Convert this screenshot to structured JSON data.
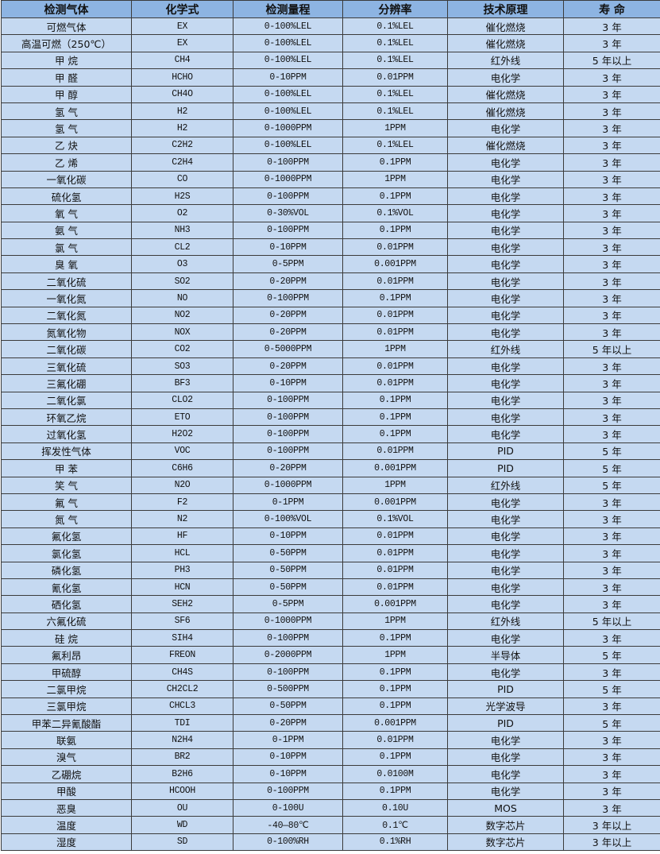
{
  "table": {
    "headers": [
      "检测气体",
      "化学式",
      "检测量程",
      "分辨率",
      "技术原理",
      "寿 命"
    ],
    "rows": [
      [
        "可燃气体",
        "EX",
        "0-100%LEL",
        "0.1%LEL",
        "催化燃烧",
        "3 年"
      ],
      [
        "高温可燃（250℃）",
        "EX",
        "0-100%LEL",
        "0.1%LEL",
        "催化燃烧",
        "3 年"
      ],
      [
        "甲 烷",
        "CH4",
        "0-100%LEL",
        "0.1%LEL",
        "红外线",
        "5 年以上"
      ],
      [
        "甲 醛",
        "HCHO",
        "0-10PPM",
        "0.01PPM",
        "电化学",
        "3 年"
      ],
      [
        "甲 醇",
        "CH4O",
        "0-100%LEL",
        "0.1%LEL",
        "催化燃烧",
        "3 年"
      ],
      [
        "氢 气",
        "H2",
        "0-100%LEL",
        "0.1%LEL",
        "催化燃烧",
        "3 年"
      ],
      [
        "氢 气",
        "H2",
        "0-1000PPM",
        "1PPM",
        "电化学",
        "3 年"
      ],
      [
        "乙 炔",
        "C2H2",
        "0-100%LEL",
        "0.1%LEL",
        "催化燃烧",
        "3 年"
      ],
      [
        "乙 烯",
        "C2H4",
        "0-100PPM",
        "0.1PPM",
        "电化学",
        "3 年"
      ],
      [
        "一氧化碳",
        "CO",
        "0-1000PPM",
        "1PPM",
        "电化学",
        "3 年"
      ],
      [
        "硫化氢",
        "H2S",
        "0-100PPM",
        "0.1PPM",
        "电化学",
        "3 年"
      ],
      [
        "氧 气",
        "O2",
        "0-30%VOL",
        "0.1%VOL",
        "电化学",
        "3 年"
      ],
      [
        "氨 气",
        "NH3",
        "0-100PPM",
        "0.1PPM",
        "电化学",
        "3 年"
      ],
      [
        "氯 气",
        "CL2",
        "0-10PPM",
        "0.01PPM",
        "电化学",
        "3 年"
      ],
      [
        "臭 氧",
        "O3",
        "0-5PPM",
        "0.001PPM",
        "电化学",
        "3 年"
      ],
      [
        "二氧化硫",
        "SO2",
        "0-20PPM",
        "0.01PPM",
        "电化学",
        "3 年"
      ],
      [
        "一氧化氮",
        "NO",
        "0-100PPM",
        "0.1PPM",
        "电化学",
        "3 年"
      ],
      [
        "二氧化氮",
        "NO2",
        "0-20PPM",
        "0.01PPM",
        "电化学",
        "3 年"
      ],
      [
        "氮氧化物",
        "NOX",
        "0-20PPM",
        "0.01PPM",
        "电化学",
        "3 年"
      ],
      [
        "二氧化碳",
        "CO2",
        "0-5000PPM",
        "1PPM",
        "红外线",
        "5 年以上"
      ],
      [
        "三氧化硫",
        "SO3",
        "0-20PPM",
        "0.01PPM",
        "电化学",
        "3 年"
      ],
      [
        "三氟化硼",
        "BF3",
        "0-10PPM",
        "0.01PPM",
        "电化学",
        "3 年"
      ],
      [
        "二氧化氯",
        "CLO2",
        "0-100PPM",
        "0.1PPM",
        "电化学",
        "3 年"
      ],
      [
        "环氧乙烷",
        "ETO",
        "0-100PPM",
        "0.1PPM",
        "电化学",
        "3 年"
      ],
      [
        "过氧化氢",
        "H2O2",
        "0-100PPM",
        "0.1PPM",
        "电化学",
        "3 年"
      ],
      [
        "挥发性气体",
        "VOC",
        "0-100PPM",
        "0.01PPM",
        "PID",
        "5 年"
      ],
      [
        "甲 苯",
        "C6H6",
        "0-20PPM",
        "0.001PPM",
        "PID",
        "5 年"
      ],
      [
        "笑 气",
        "N2O",
        "0-1000PPM",
        "1PPM",
        "红外线",
        "5 年"
      ],
      [
        "氟 气",
        "F2",
        "0-1PPM",
        "0.001PPM",
        "电化学",
        "3 年"
      ],
      [
        "氮 气",
        "N2",
        "0-100%VOL",
        "0.1%VOL",
        "电化学",
        "3 年"
      ],
      [
        "氟化氢",
        "HF",
        "0-10PPM",
        "0.01PPM",
        "电化学",
        "3 年"
      ],
      [
        "氯化氢",
        "HCL",
        "0-50PPM",
        "0.01PPM",
        "电化学",
        "3 年"
      ],
      [
        "磷化氢",
        "PH3",
        "0-50PPM",
        "0.01PPM",
        "电化学",
        "3 年"
      ],
      [
        "氰化氢",
        "HCN",
        "0-50PPM",
        "0.01PPM",
        "电化学",
        "3 年"
      ],
      [
        "硒化氢",
        "SEH2",
        "0-5PPM",
        "0.001PPM",
        "电化学",
        "3 年"
      ],
      [
        "六氟化硫",
        "SF6",
        "0-1000PPM",
        "1PPM",
        "红外线",
        "5 年以上"
      ],
      [
        "硅 烷",
        "SIH4",
        "0-100PPM",
        "0.1PPM",
        "电化学",
        "3 年"
      ],
      [
        "氟利昂",
        "FREON",
        "0-2000PPM",
        "1PPM",
        "半导体",
        "5 年"
      ],
      [
        "甲硫醇",
        "CH4S",
        "0-100PPM",
        "0.1PPM",
        "电化学",
        "3 年"
      ],
      [
        "二氯甲烷",
        "CH2CL2",
        "0-500PPM",
        "0.1PPM",
        "PID",
        "5 年"
      ],
      [
        "三氯甲烷",
        "CHCL3",
        "0-50PPM",
        "0.1PPM",
        "光学波导",
        "3 年"
      ],
      [
        "甲苯二异氰酸酯",
        "TDI",
        "0-20PPM",
        "0.001PPM",
        "PID",
        "5 年"
      ],
      [
        "联氨",
        "N2H4",
        "0-1PPM",
        "0.01PPM",
        "电化学",
        "3 年"
      ],
      [
        "溴气",
        "BR2",
        "0-10PPM",
        "0.1PPM",
        "电化学",
        "3 年"
      ],
      [
        "乙硼烷",
        "B2H6",
        "0-10PPM",
        "0.0100M",
        "电化学",
        "3 年"
      ],
      [
        "甲酸",
        "HCOOH",
        "0-100PPM",
        "0.1PPM",
        "电化学",
        "3 年"
      ],
      [
        "恶臭",
        "OU",
        "0-100U",
        "0.10U",
        "MOS",
        "3 年"
      ],
      [
        "温度",
        "WD",
        "-40—80℃",
        "0.1℃",
        "数字芯片",
        "3 年以上"
      ],
      [
        "湿度",
        "SD",
        "0-100%RH",
        "0.1%RH",
        "数字芯片",
        "3 年以上"
      ]
    ]
  },
  "colors": {
    "header_bg": "#8db4e2",
    "row_bg": "#c5d9f1",
    "border": "#3b3b3b"
  }
}
